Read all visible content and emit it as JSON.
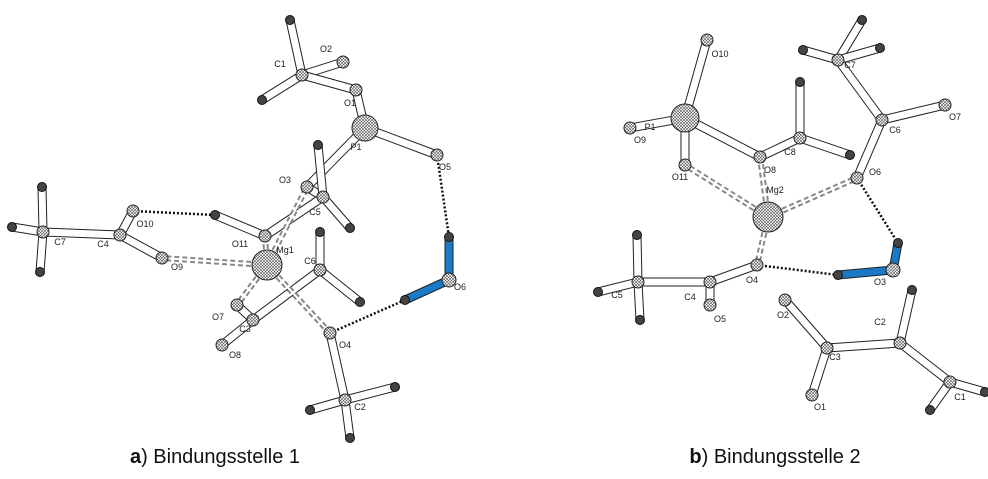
{
  "panels": [
    {
      "caption": {
        "letter": "a",
        "text": ") Bindungsstelle 1"
      },
      "atoms": [
        "C1",
        "O2",
        "O1",
        "P1",
        "O5",
        "O3",
        "C5",
        "O10",
        "C4",
        "C7",
        "O9",
        "O11",
        "Mg1",
        "C6",
        "O7",
        "C3",
        "O8",
        "O4",
        "C2",
        "O6"
      ]
    },
    {
      "caption": {
        "letter": "b",
        "text": ") Bindungsstelle 2"
      },
      "atoms": [
        "O10",
        "P1",
        "O9",
        "O11",
        "O8",
        "C8",
        "C7",
        "C6",
        "O7",
        "O6",
        "Mg2",
        "O3",
        "O4",
        "C4",
        "C5",
        "O5",
        "O2",
        "C3",
        "O1",
        "C2",
        "C1"
      ]
    }
  ]
}
